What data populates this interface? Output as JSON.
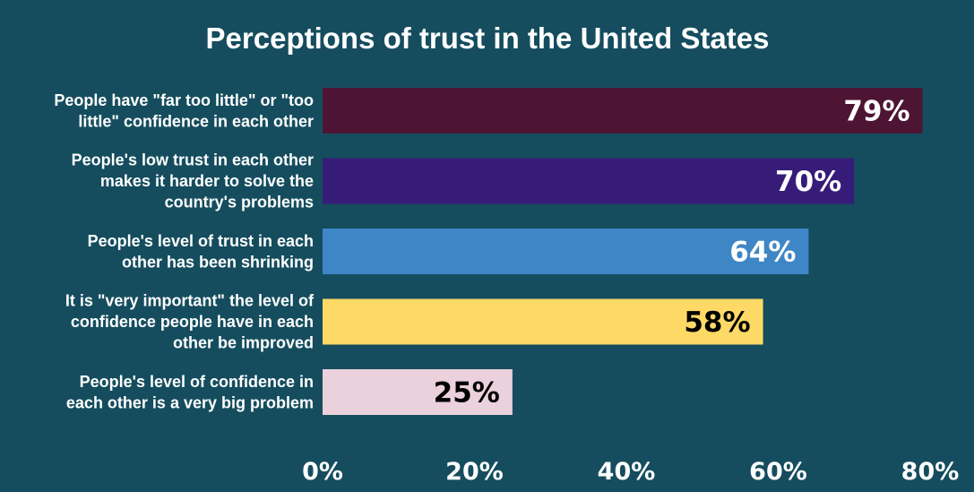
{
  "chart_data": {
    "type": "bar",
    "orientation": "horizontal",
    "title": "Perceptions of trust in the United States",
    "xlabel": "",
    "ylabel": "",
    "xlim": [
      0,
      80
    ],
    "grid": false,
    "legend": "none",
    "background_color": "#154d5e",
    "categories": [
      "People have \"far too little\" or \"too little\" confidence in each other",
      "People's low trust in each other makes it harder to solve the country's problems",
      "People's level of trust in each other has been shrinking",
      "It is \"very important\" the level of confidence people have in each other be improved",
      "People's level of confidence in each other is a very big problem"
    ],
    "category_label_lines": [
      [
        "People have \"far too little\" or \"too",
        "little\" confidence in each other"
      ],
      [
        "People's low trust in each other",
        "makes it harder to solve the",
        "country's problems"
      ],
      [
        "People's level of trust in each",
        "other has been shrinking"
      ],
      [
        "It is \"very important\" the level of",
        "confidence people have in each",
        "other be improved"
      ],
      [
        "People's level of confidence in",
        "each other is a very big problem"
      ]
    ],
    "values": [
      79,
      70,
      64,
      58,
      25
    ],
    "data_labels": [
      "79%",
      "70%",
      "64%",
      "58%",
      "25%"
    ],
    "bar_colors": [
      "#4d1533",
      "#361c78",
      "#3f86c6",
      "#fed966",
      "#ebd1dc"
    ],
    "label_colors": [
      "#ffffff",
      "#ffffff",
      "#ffffff",
      "#000000",
      "#000000"
    ],
    "x_ticks": [
      0,
      20,
      40,
      60,
      80
    ],
    "x_tick_labels": [
      "0%",
      "20%",
      "40%",
      "60%",
      "80%"
    ]
  }
}
